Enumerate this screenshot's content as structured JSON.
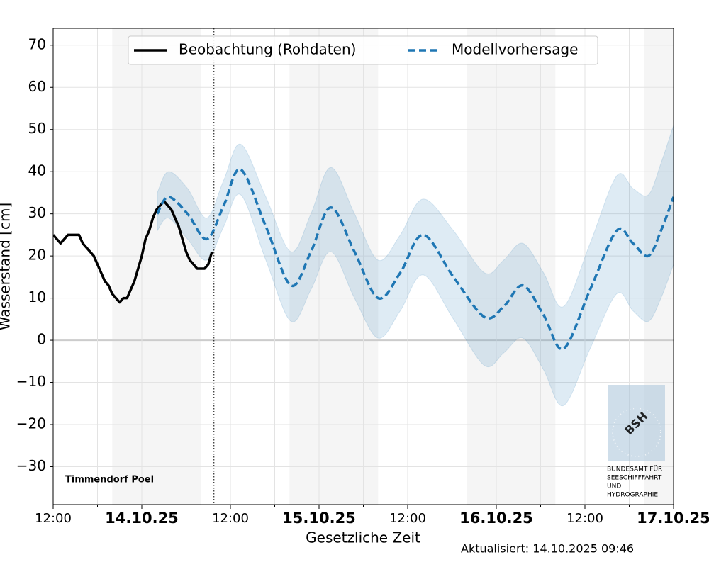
{
  "chart_data": {
    "type": "line",
    "station": "Timmendorf Poel",
    "updated": "Aktualisiert: 14.10.2025 09:46",
    "xlabel": "Gesetzliche Zeit",
    "ylabel": "Wasserstand [cm]",
    "xlim": [
      0,
      84
    ],
    "ylim": [
      -39,
      74
    ],
    "xticks": [
      {
        "value": 0,
        "label": "12:00"
      },
      {
        "value": 12,
        "label": "14.10.25"
      },
      {
        "value": 24,
        "label": "12:00"
      },
      {
        "value": 36,
        "label": "15.10.25"
      },
      {
        "value": 48,
        "label": "12:00"
      },
      {
        "value": 60,
        "label": "16.10.25"
      },
      {
        "value": 72,
        "label": "12:00"
      },
      {
        "value": 84,
        "label": "17.10.25"
      }
    ],
    "xminor": [
      6,
      18,
      30,
      42,
      54,
      66,
      78
    ],
    "yticks": [
      {
        "value": -30,
        "label": "−30"
      },
      {
        "value": -20,
        "label": "−20"
      },
      {
        "value": -10,
        "label": "−10"
      },
      0,
      10,
      20,
      30,
      40,
      50,
      60,
      70
    ],
    "grid": true,
    "night_bands": [
      [
        8,
        20
      ],
      [
        32,
        44
      ],
      [
        56,
        68
      ],
      [
        80,
        84
      ]
    ],
    "now_x": 21.77,
    "series": [
      {
        "name": "Beobachtung (Rohdaten)",
        "color": "#000000",
        "style": "solid",
        "x": [
          0,
          0.5,
          1,
          1.5,
          2,
          2.5,
          3,
          3.5,
          4,
          4.5,
          5,
          5.5,
          6,
          6.5,
          7,
          7.5,
          8,
          8.5,
          9,
          9.5,
          10,
          10.5,
          11,
          11.5,
          12,
          12.5,
          13,
          13.5,
          14,
          14.5,
          15,
          15.5,
          16,
          16.5,
          17,
          17.5,
          18,
          18.5,
          19,
          19.5,
          20,
          20.5,
          21,
          21.5
        ],
        "values": [
          25,
          24,
          23,
          24,
          25,
          25,
          25,
          25,
          23,
          22,
          21,
          20,
          18,
          16,
          14,
          13,
          11,
          10,
          9,
          10,
          10,
          12,
          14,
          17,
          20,
          24,
          26,
          29,
          31,
          32,
          33,
          32,
          31,
          29,
          27,
          24,
          21,
          19,
          18,
          17,
          17,
          17,
          18,
          21
        ]
      },
      {
        "name": "Modellvorhersage",
        "color": "#1f77b4",
        "style": "dashed",
        "x": [
          14.1,
          15.6,
          18.2,
          20.8,
          23.1,
          25.4,
          28.8,
          32.2,
          34.9,
          37.6,
          40.8,
          44,
          47,
          50.1,
          54.2,
          58.4,
          61,
          63.6,
          66.4,
          69.1,
          72.7,
          76.3,
          78.5,
          80.6,
          82.3,
          84
        ],
        "values": [
          30,
          34,
          30,
          24,
          32,
          40.5,
          27,
          13,
          21,
          31.5,
          21,
          10,
          16,
          25,
          15,
          5.5,
          8,
          13,
          6,
          -2,
          12,
          26,
          23,
          20,
          26,
          34
        ]
      }
    ],
    "band": {
      "color": "#1f77b4",
      "x": [
        14.1,
        15.6,
        18.2,
        20.8,
        23.1,
        25.4,
        28.8,
        32.2,
        34.9,
        37.6,
        40.8,
        44,
        47,
        50.1,
        54.2,
        58.4,
        61,
        63.6,
        66.4,
        69.1,
        72.7,
        76.3,
        78.5,
        80.6,
        82.3,
        84
      ],
      "upper": [
        35,
        40,
        36,
        29,
        38,
        46.5,
        34,
        21,
        30,
        41,
        30,
        19,
        25,
        33.5,
        26,
        16,
        19,
        23,
        16,
        8,
        23,
        39,
        36,
        34.5,
        42,
        51
      ],
      "lower": [
        26,
        29,
        24,
        19,
        27,
        34.5,
        19,
        4.5,
        12,
        21,
        10,
        0.5,
        7,
        15.5,
        5,
        -6,
        -3,
        0.5,
        -7,
        -15.5,
        -2,
        11,
        7,
        4.5,
        10,
        18
      ]
    },
    "logo": [
      "BSH",
      "BUNDESAMT FÜR",
      "SEESCHIFFFAHRT",
      "UND",
      "HYDROGRAPHIE"
    ]
  }
}
